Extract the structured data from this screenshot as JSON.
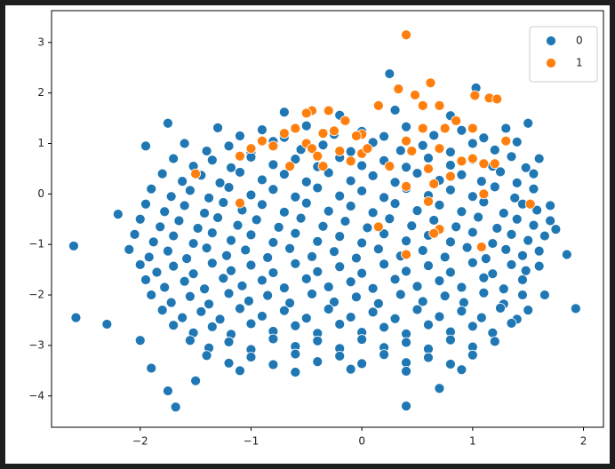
{
  "chart_data": {
    "type": "scatter",
    "xlim": [
      -2.8,
      2.18
    ],
    "ylim": [
      -4.62,
      3.63
    ],
    "xticks": [
      {
        "value": -2,
        "label": "−2"
      },
      {
        "value": -1,
        "label": "−1"
      },
      0,
      1,
      2
    ],
    "yticks": [
      {
        "value": -4,
        "label": "−4"
      },
      {
        "value": -3,
        "label": "−3"
      },
      {
        "value": -2,
        "label": "−2"
      },
      {
        "value": -1,
        "label": "−1"
      },
      0,
      1,
      2,
      3
    ],
    "legend": "upper right",
    "series": [
      {
        "name": "0",
        "color": "#1f77b4",
        "x": [
          -0.7,
          -0.2,
          0.3,
          0.8,
          -1.3,
          -0.9,
          -0.5,
          0,
          0.4,
          0.9,
          1.3,
          -1.1,
          -0.7,
          -0.25,
          0.2,
          0.65,
          1.1,
          -1.6,
          -1.2,
          -0.8,
          -0.35,
          0.1,
          0.55,
          1.0,
          1.4,
          -1.4,
          -1.0,
          -0.55,
          -0.1,
          0.35,
          0.8,
          1.2,
          -1.7,
          -1.35,
          -1.0,
          -0.6,
          -0.2,
          0.2,
          0.6,
          1.0,
          1.35,
          1.6,
          -1.52,
          -1.18,
          -0.8,
          -0.4,
          0,
          0.4,
          0.8,
          1.18,
          1.48,
          -1.8,
          -1.45,
          -1.1,
          -0.7,
          -0.3,
          0.1,
          0.5,
          0.9,
          1.25,
          1.55,
          -1.62,
          -1.28,
          -0.9,
          -0.5,
          -0.1,
          0.3,
          0.7,
          1.08,
          1.4,
          -1.9,
          -1.55,
          -1.2,
          -0.8,
          -0.4,
          0,
          0.4,
          0.8,
          1.2,
          1.55,
          -1.72,
          -1.38,
          -1.0,
          -0.6,
          -0.2,
          0.2,
          0.6,
          1.0,
          1.38,
          -1.95,
          -1.6,
          -1.25,
          -0.9,
          -0.5,
          -0.1,
          0.3,
          0.7,
          1.1,
          1.45,
          1.7,
          -1.78,
          -1.42,
          -1.08,
          -0.7,
          -0.3,
          0.1,
          0.5,
          0.9,
          1.28,
          1.58,
          -2.0,
          -1.65,
          -1.3,
          -0.95,
          -0.55,
          -0.15,
          0.25,
          0.65,
          1.05,
          1.4,
          1.7,
          -1.82,
          -1.48,
          -1.12,
          -0.75,
          -0.35,
          0.05,
          0.45,
          0.85,
          1.22,
          1.55,
          -2.05,
          -1.7,
          -1.35,
          -1.0,
          -0.6,
          -0.2,
          0.2,
          0.6,
          1.0,
          1.35,
          1.65,
          -1.88,
          -1.52,
          -1.18,
          -0.8,
          -0.4,
          0,
          0.4,
          0.8,
          1.18,
          1.5,
          -2.1,
          -1.75,
          -1.4,
          -1.05,
          -0.65,
          -0.25,
          0.15,
          0.55,
          0.95,
          1.3,
          1.6,
          -1.92,
          -1.58,
          -1.22,
          -0.85,
          -0.45,
          -0.05,
          0.35,
          0.75,
          1.12,
          1.45,
          -2.0,
          -1.7,
          -1.35,
          -1.0,
          -0.6,
          -0.2,
          0.2,
          0.6,
          1.0,
          1.35,
          1.6,
          -1.85,
          -1.52,
          -1.18,
          -0.8,
          -0.4,
          0,
          0.4,
          0.8,
          1.18,
          1.48,
          -1.95,
          -1.6,
          -1.25,
          -0.9,
          -0.5,
          -0.1,
          0.3,
          0.7,
          1.1,
          1.45,
          -1.78,
          -1.42,
          -1.08,
          -0.7,
          -0.3,
          0.1,
          0.5,
          0.9,
          1.28,
          -1.9,
          -1.55,
          -1.2,
          -0.85,
          -0.45,
          -0.05,
          0.35,
          0.75,
          1.1,
          1.45,
          -1.72,
          -1.38,
          -1.02,
          -0.65,
          -0.25,
          0.15,
          0.55,
          0.92,
          1.28,
          -1.8,
          -1.45,
          -1.1,
          -0.7,
          -0.3,
          0.1,
          0.5,
          0.9,
          1.25,
          1.5,
          -1.62,
          -1.28,
          -0.9,
          -0.5,
          -0.1,
          0.3,
          0.7,
          1.08,
          1.4,
          -1.7,
          -1.35,
          -1.0,
          -0.6,
          -0.2,
          0.2,
          0.6,
          1.0,
          1.35,
          -1.52,
          -1.18,
          -0.8,
          -0.4,
          0,
          0.4,
          0.8,
          1.18,
          -1.55,
          -1.2,
          -0.8,
          -0.4,
          0,
          0.4,
          0.8,
          1.2,
          -1.38,
          -1.0,
          -0.6,
          -0.2,
          0.2,
          0.6,
          1.0,
          -1.4,
          -1.0,
          -0.6,
          -0.2,
          0.2,
          0.6,
          1.0,
          -1.2,
          -0.8,
          -0.4,
          0,
          0.4,
          0.8,
          -1.1,
          -0.6,
          -0.1,
          0.4,
          0.9,
          -2.6,
          -2.58,
          -2.3,
          1.93,
          -1.68,
          -1.75,
          0.4,
          0.25,
          1.03,
          -1.75,
          -1.95,
          -1.9,
          1.65,
          1.5,
          1.75,
          -2.2,
          -1.5,
          0.7,
          1.85,
          -2.0
        ],
        "values": [
          1.62,
          1.56,
          1.66,
          1.55,
          1.31,
          1.27,
          1.35,
          1.24,
          1.33,
          1.26,
          1.3,
          1.15,
          1.12,
          1.18,
          1.14,
          1.16,
          1.11,
          1.0,
          0.95,
          1.04,
          0.97,
          1.02,
          0.96,
          1.0,
          1.03,
          0.85,
          0.82,
          0.88,
          0.84,
          0.86,
          0.83,
          0.87,
          0.7,
          0.67,
          0.73,
          0.69,
          0.72,
          0.66,
          0.71,
          0.68,
          0.74,
          0.7,
          0.55,
          0.52,
          0.58,
          0.54,
          0.56,
          0.53,
          0.57,
          0.55,
          0.52,
          0.4,
          0.37,
          0.43,
          0.39,
          0.42,
          0.36,
          0.41,
          0.38,
          0.44,
          0.4,
          0.25,
          0.22,
          0.28,
          0.24,
          0.26,
          0.23,
          0.27,
          0.25,
          0.22,
          0.1,
          0.07,
          0.13,
          0.09,
          0.12,
          0.06,
          0.11,
          0.08,
          0.14,
          0.1,
          -0.05,
          -0.08,
          -0.02,
          -0.06,
          -0.04,
          -0.07,
          -0.03,
          -0.05,
          -0.08,
          -0.2,
          -0.23,
          -0.17,
          -0.21,
          -0.18,
          -0.24,
          -0.19,
          -0.22,
          -0.16,
          -0.2,
          -0.23,
          -0.35,
          -0.38,
          -0.32,
          -0.36,
          -0.34,
          -0.37,
          -0.33,
          -0.35,
          -0.38,
          -0.32,
          -0.5,
          -0.53,
          -0.47,
          -0.51,
          -0.48,
          -0.54,
          -0.49,
          -0.52,
          -0.46,
          -0.5,
          -0.53,
          -0.65,
          -0.68,
          -0.62,
          -0.66,
          -0.64,
          -0.67,
          -0.63,
          -0.65,
          -0.68,
          -0.62,
          -0.8,
          -0.83,
          -0.77,
          -0.81,
          -0.78,
          -0.84,
          -0.79,
          -0.82,
          -0.76,
          -0.8,
          -0.83,
          -0.95,
          -0.98,
          -0.92,
          -0.96,
          -0.94,
          -0.97,
          -0.93,
          -0.95,
          -0.98,
          -0.92,
          -1.1,
          -1.13,
          -1.07,
          -1.11,
          -1.08,
          -1.14,
          -1.09,
          -1.12,
          -1.06,
          -1.1,
          -1.13,
          -1.25,
          -1.28,
          -1.22,
          -1.26,
          -1.24,
          -1.27,
          -1.23,
          -1.25,
          -1.28,
          -1.22,
          -1.4,
          -1.43,
          -1.37,
          -1.41,
          -1.38,
          -1.44,
          -1.39,
          -1.42,
          -1.36,
          -1.4,
          -1.43,
          -1.55,
          -1.58,
          -1.52,
          -1.56,
          -1.54,
          -1.57,
          -1.53,
          -1.55,
          -1.58,
          -1.52,
          -1.7,
          -1.73,
          -1.67,
          -1.71,
          -1.68,
          -1.74,
          -1.69,
          -1.72,
          -1.66,
          -1.7,
          -1.85,
          -1.88,
          -1.82,
          -1.86,
          -1.84,
          -1.87,
          -1.83,
          -1.85,
          -1.88,
          -2.0,
          -2.03,
          -1.97,
          -2.01,
          -1.98,
          -2.04,
          -1.99,
          -2.02,
          -1.96,
          -2.0,
          -2.15,
          -2.18,
          -2.12,
          -2.16,
          -2.14,
          -2.17,
          -2.13,
          -2.15,
          -2.18,
          -2.3,
          -2.33,
          -2.27,
          -2.31,
          -2.28,
          -2.34,
          -2.29,
          -2.32,
          -2.26,
          -2.3,
          -2.45,
          -2.48,
          -2.42,
          -2.46,
          -2.44,
          -2.47,
          -2.43,
          -2.45,
          -2.48,
          -2.6,
          -2.63,
          -2.57,
          -2.61,
          -2.58,
          -2.64,
          -2.59,
          -2.62,
          -2.56,
          -2.75,
          -2.78,
          -2.72,
          -2.76,
          -2.74,
          -2.77,
          -2.73,
          -2.75,
          -2.9,
          -2.93,
          -2.87,
          -2.91,
          -2.88,
          -2.94,
          -2.89,
          -2.92,
          -3.05,
          -3.08,
          -3.02,
          -3.06,
          -3.04,
          -3.07,
          -3.03,
          -3.2,
          -3.23,
          -3.17,
          -3.21,
          -3.18,
          -3.24,
          -3.19,
          -3.35,
          -3.38,
          -3.32,
          -3.36,
          -3.34,
          -3.37,
          -3.5,
          -3.53,
          -3.47,
          -3.51,
          -3.48,
          -1.03,
          -2.45,
          -2.58,
          -2.27,
          -4.22,
          -3.9,
          -4.2,
          2.38,
          2.1,
          1.4,
          0.95,
          -3.45,
          -2.0,
          1.4,
          -0.7,
          -0.4,
          -3.7,
          -3.85,
          -1.2,
          -2.9
        ]
      },
      {
        "name": "1",
        "color": "#ff7f0e",
        "x": [
          0.4,
          0.62,
          0.33,
          0.48,
          1.02,
          1.15,
          1.22,
          0.55,
          0.7,
          0.15,
          -0.3,
          -0.45,
          -0.5,
          -0.15,
          -0.25,
          -0.35,
          0.0,
          -0.05,
          0.55,
          0.75,
          1.0,
          -0.6,
          -0.7,
          -0.9,
          -0.8,
          -0.5,
          -0.45,
          -0.4,
          -0.2,
          -0.1,
          0.0,
          -0.35,
          -0.65,
          -1.0,
          -1.1,
          -1.5,
          0.4,
          0.45,
          0.7,
          0.9,
          1.0,
          1.1,
          1.2,
          0.6,
          0.8,
          0.65,
          0.4,
          1.1,
          1.52,
          -1.1,
          0.15,
          0.7,
          0.65,
          1.08,
          0.4,
          0.85,
          1.3,
          0.25,
          0.6,
          0.05
        ],
        "values": [
          3.15,
          2.2,
          2.08,
          1.96,
          1.95,
          1.9,
          1.88,
          1.75,
          1.75,
          1.75,
          1.65,
          1.65,
          1.6,
          1.45,
          1.25,
          1.2,
          1.18,
          1.15,
          1.3,
          1.3,
          1.3,
          1.3,
          1.2,
          1.05,
          0.95,
          1.0,
          0.9,
          0.75,
          0.85,
          0.65,
          0.8,
          0.55,
          0.55,
          0.9,
          0.75,
          0.4,
          1.05,
          0.85,
          0.9,
          0.65,
          0.7,
          0.6,
          0.6,
          0.5,
          0.35,
          0.2,
          0.15,
          0.0,
          -0.2,
          -0.18,
          -0.65,
          -0.7,
          -0.78,
          -1.05,
          -1.2,
          1.45,
          1.05,
          0.55,
          -0.15,
          0.9
        ]
      }
    ]
  }
}
